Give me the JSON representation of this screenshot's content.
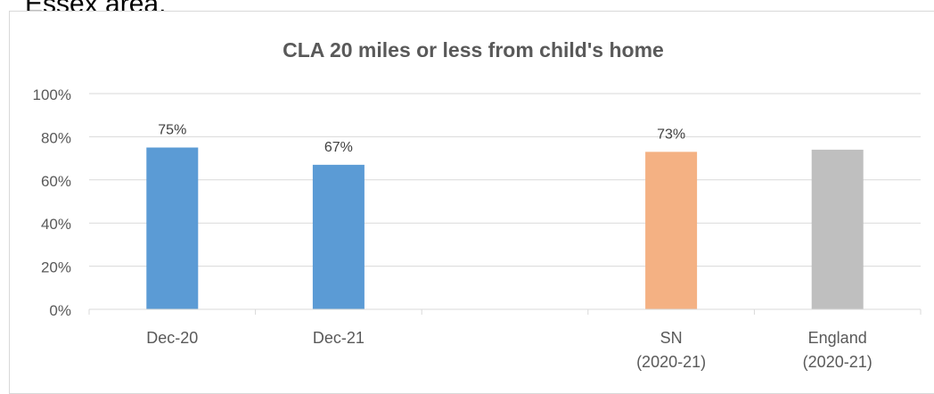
{
  "cutoff_text": "Essex area.",
  "chart_data": {
    "type": "bar",
    "title": "CLA 20 miles or less from child's home",
    "xlabel": "",
    "ylabel": "",
    "ylim": [
      0,
      100
    ],
    "y_ticks": [
      "0%",
      "20%",
      "40%",
      "60%",
      "80%",
      "100%"
    ],
    "categories": [
      [
        "Dec-20"
      ],
      [
        "Dec-21"
      ],
      [
        ""
      ],
      [
        "SN",
        "(2020-21)"
      ],
      [
        "England",
        "(2020-21)"
      ]
    ],
    "values": [
      75,
      67,
      null,
      73,
      74
    ],
    "data_labels": [
      "75%",
      "67%",
      "",
      "73%",
      ""
    ],
    "bar_colors": [
      "#5b9bd5",
      "#5b9bd5",
      "#ffffff",
      "#f4b183",
      "#bfbfbf"
    ],
    "grid": true,
    "legend": "none"
  }
}
